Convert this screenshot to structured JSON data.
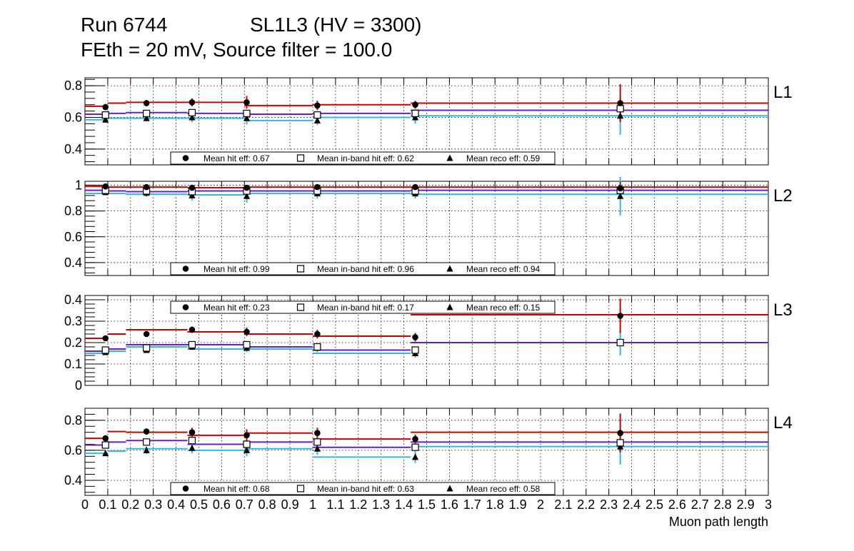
{
  "header": {
    "line1_left": "Run 6744",
    "line1_right": "SL1L3 (HV = 3300)",
    "line2": "FEth = 20 mV, Source filter = 100.0"
  },
  "colors": {
    "hit": "#cc0000",
    "inband": "#6a1fc2",
    "reco": "#33b6e8",
    "marker": "#000000"
  },
  "chart_data": {
    "type": "scatter",
    "xlabel": "Muon path length",
    "xlim": [
      0,
      3
    ],
    "x_tick_labels": [
      "0",
      "0.1",
      "0.2",
      "0.3",
      "0.4",
      "0.5",
      "0.6",
      "0.7",
      "0.8",
      "0.9",
      "1",
      "1.1",
      "1.2",
      "1.3",
      "1.4",
      "1.5",
      "1.6",
      "1.7",
      "1.8",
      "1.9",
      "2",
      "2.1",
      "2.2",
      "2.3",
      "2.4",
      "2.5",
      "2.6",
      "2.7",
      "2.8",
      "2.9",
      "3"
    ],
    "bin_edges": [
      0,
      0.1,
      0.18,
      0.45,
      0.7,
      1.0,
      1.43,
      1.7,
      3.0
    ],
    "points_x": [
      0.09,
      0.27,
      0.47,
      0.71,
      1.02,
      1.45,
      2.35
    ],
    "panels": [
      {
        "label": "L1",
        "ylim": [
          0.3,
          0.85
        ],
        "yticks": [
          0.4,
          0.6,
          0.8
        ],
        "ytick_labels": [
          "0.4",
          "0.6",
          "0.8"
        ],
        "legend": [
          "Mean hit  eff: 0.67",
          "Mean in-band hit eff: 0.62",
          "Mean reco eff: 0.59"
        ],
        "legend_pos": "bottom-left",
        "hit_steps": [
          0.67,
          0.69,
          0.695,
          0.695,
          0.675,
          0.68,
          0.69,
          0.69
        ],
        "inband_steps": [
          0.62,
          0.625,
          0.63,
          0.625,
          0.62,
          0.625,
          0.645,
          0.645
        ],
        "reco_steps": [
          0.585,
          0.595,
          0.595,
          0.595,
          0.58,
          0.6,
          0.61,
          0.61
        ],
        "hit_points": [
          0.665,
          0.69,
          0.695,
          0.695,
          0.675,
          0.68,
          0.69
        ],
        "inband_points": [
          0.615,
          0.625,
          0.63,
          0.625,
          0.615,
          0.625,
          0.655
        ],
        "reco_points": [
          0.585,
          0.595,
          0.6,
          0.595,
          0.58,
          0.6,
          0.61
        ],
        "hit_err": [
          0.02,
          0.02,
          0.025,
          0.04,
          0.03,
          0.025,
          0.12
        ],
        "reco_err": [
          0.02,
          0.02,
          0.03,
          0.04,
          0.03,
          0.04,
          0.12
        ]
      },
      {
        "label": "L2",
        "ylim": [
          0.3,
          1.03
        ],
        "yticks": [
          0.4,
          0.6,
          0.8,
          1.0
        ],
        "ytick_labels": [
          "0.4",
          "0.6",
          "0.8",
          "1"
        ],
        "legend": [
          "Mean hit  eff: 0.99",
          "Mean in-band hit eff: 0.96",
          "Mean reco eff: 0.94"
        ],
        "legend_pos": "bottom-left",
        "hit_steps": [
          0.99,
          0.985,
          0.985,
          0.98,
          0.985,
          0.985,
          0.985,
          0.985
        ],
        "inband_steps": [
          0.96,
          0.955,
          0.95,
          0.955,
          0.955,
          0.955,
          0.96,
          0.96
        ],
        "reco_steps": [
          0.935,
          0.935,
          0.93,
          0.925,
          0.935,
          0.935,
          0.93,
          0.93
        ],
        "hit_points": [
          0.99,
          0.985,
          0.98,
          0.98,
          0.985,
          0.985,
          0.975
        ],
        "inband_points": [
          0.96,
          0.955,
          0.95,
          0.955,
          0.955,
          0.955,
          0.96
        ],
        "reco_points": [
          0.945,
          0.94,
          0.92,
          0.915,
          0.935,
          0.935,
          0.915
        ],
        "hit_err": [
          0.01,
          0.01,
          0.015,
          0.02,
          0.015,
          0.015,
          0.05
        ],
        "reco_err": [
          0.02,
          0.03,
          0.04,
          0.05,
          0.04,
          0.04,
          0.15
        ]
      },
      {
        "label": "L3",
        "ylim": [
          0,
          0.42
        ],
        "yticks": [
          0,
          0.1,
          0.2,
          0.3,
          0.4
        ],
        "ytick_labels": [
          "0",
          "0.1",
          "0.2",
          "0.3",
          "0.4"
        ],
        "legend": [
          "Mean hit  eff: 0.23",
          "Mean in-band hit eff: 0.17",
          "Mean reco eff: 0.15"
        ],
        "legend_pos": "top-left",
        "hit_steps": [
          0.22,
          0.24,
          0.26,
          0.25,
          0.24,
          0.23,
          0.33,
          0.33
        ],
        "inband_steps": [
          0.16,
          0.17,
          0.19,
          0.19,
          0.18,
          0.165,
          0.2,
          0.2
        ],
        "reco_steps": [
          0.15,
          0.16,
          0.18,
          0.17,
          0.17,
          0.15,
          0.2,
          0.2
        ],
        "hit_points": [
          0.22,
          0.24,
          0.26,
          0.25,
          0.24,
          0.225,
          0.325
        ],
        "inband_points": [
          0.165,
          0.175,
          0.19,
          0.19,
          0.18,
          0.165,
          0.2
        ],
        "reco_points": [
          0.155,
          0.165,
          0.18,
          0.175,
          0.175,
          0.15,
          0.2
        ],
        "hit_err": [
          0.01,
          0.01,
          0.015,
          0.02,
          0.02,
          0.02,
          0.08
        ],
        "reco_err": [
          0.01,
          0.01,
          0.015,
          0.02,
          0.02,
          0.02,
          0.06
        ]
      },
      {
        "label": "L4",
        "ylim": [
          0.3,
          0.88
        ],
        "yticks": [
          0.4,
          0.6,
          0.8
        ],
        "ytick_labels": [
          "0.4",
          "0.6",
          "0.8"
        ],
        "legend": [
          "Mean hit  eff: 0.68",
          "Mean in-band hit eff: 0.63",
          "Mean reco eff: 0.58"
        ],
        "legend_pos": "bottom-left",
        "hit_steps": [
          0.68,
          0.725,
          0.72,
          0.7,
          0.715,
          0.675,
          0.72,
          0.72
        ],
        "inband_steps": [
          0.635,
          0.655,
          0.665,
          0.64,
          0.655,
          0.62,
          0.655,
          0.655
        ],
        "reco_steps": [
          0.58,
          0.595,
          0.61,
          0.6,
          0.61,
          0.555,
          0.625,
          0.625
        ],
        "hit_points": [
          0.68,
          0.725,
          0.72,
          0.7,
          0.715,
          0.675,
          0.715
        ],
        "inband_points": [
          0.635,
          0.655,
          0.665,
          0.64,
          0.655,
          0.62,
          0.65
        ],
        "reco_points": [
          0.58,
          0.6,
          0.615,
          0.6,
          0.61,
          0.555,
          0.625
        ],
        "hit_err": [
          0.02,
          0.02,
          0.03,
          0.04,
          0.035,
          0.03,
          0.13
        ],
        "reco_err": [
          0.02,
          0.025,
          0.035,
          0.04,
          0.04,
          0.04,
          0.12
        ]
      }
    ]
  }
}
